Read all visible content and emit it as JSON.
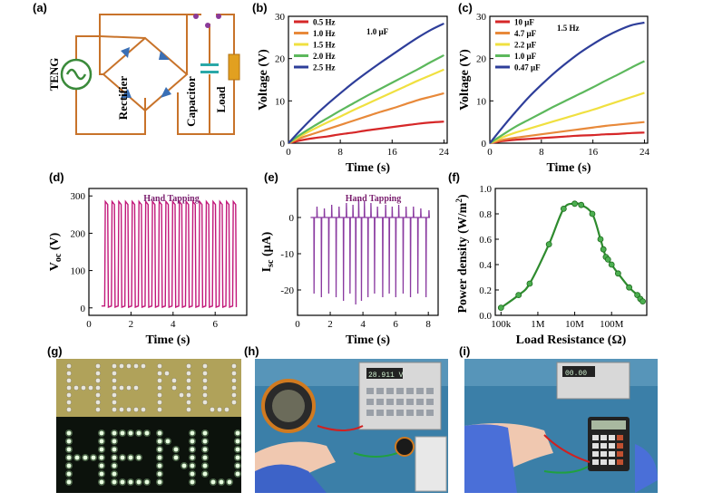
{
  "panels": {
    "a": "(a)",
    "b": "(b)",
    "c": "(c)",
    "d": "(d)",
    "e": "(e)",
    "f": "(f)",
    "g": "(g)",
    "h": "(h)",
    "i": "(i)"
  },
  "circuit": {
    "teng_label": "TENG",
    "rectifier_label": "Rectifier",
    "capacitor_label": "Capacitor",
    "load_label": "Load",
    "colors": {
      "wire": "#c8732a",
      "diode": "#3a6fb5",
      "source": "#3a8a3a",
      "capacitor": "#2aa8a8",
      "load": "#e2a020",
      "switch": "#8a3a9a"
    }
  },
  "photos": {
    "g_text": "HENU",
    "h_meter_reading": "28.911 V",
    "i_meter_reading": "00.00"
  },
  "chart_data": [
    {
      "panel": "b",
      "type": "line",
      "xlabel": "Time (s)",
      "ylabel": "Voltage (V)",
      "xlim": [
        0,
        24.5
      ],
      "ylim": [
        0,
        30
      ],
      "xticks": [
        0,
        8,
        16,
        24
      ],
      "yticks": [
        0,
        10,
        20,
        30
      ],
      "annotation": "1.0 μF",
      "legend_position": "top-left",
      "series": [
        {
          "name": "0.5 Hz",
          "color": "#d62728",
          "x": [
            0,
            2,
            4,
            6,
            8,
            10,
            12,
            14,
            16,
            18,
            20,
            22,
            24
          ],
          "y": [
            0,
            0.7,
            1.2,
            1.6,
            2.1,
            2.5,
            3.0,
            3.4,
            3.8,
            4.2,
            4.6,
            4.9,
            5.1
          ]
        },
        {
          "name": "1.0 Hz",
          "color": "#e8893a",
          "x": [
            0,
            2,
            4,
            6,
            8,
            10,
            12,
            14,
            16,
            18,
            20,
            22,
            24
          ],
          "y": [
            0,
            1.3,
            2.3,
            3.3,
            4.3,
            5.3,
            6.3,
            7.3,
            8.2,
            9.2,
            10.2,
            11.0,
            11.8
          ]
        },
        {
          "name": "1.5 Hz",
          "color": "#f0e040",
          "x": [
            0,
            2,
            4,
            6,
            8,
            10,
            12,
            14,
            16,
            18,
            20,
            22,
            24
          ],
          "y": [
            0,
            1.8,
            3.4,
            4.9,
            6.3,
            7.8,
            9.2,
            10.6,
            12.0,
            13.4,
            14.8,
            16.1,
            17.4
          ]
        },
        {
          "name": "2.0 Hz",
          "color": "#5cb85c",
          "x": [
            0,
            2,
            4,
            6,
            8,
            10,
            12,
            14,
            16,
            18,
            20,
            22,
            24
          ],
          "y": [
            0,
            2.2,
            4.1,
            5.9,
            7.7,
            9.4,
            11.1,
            12.7,
            14.3,
            15.9,
            17.5,
            19.2,
            20.8
          ]
        },
        {
          "name": "2.5 Hz",
          "color": "#2e3e9a",
          "x": [
            0,
            2,
            4,
            6,
            8,
            10,
            12,
            14,
            16,
            18,
            20,
            22,
            24
          ],
          "y": [
            0,
            3.3,
            6.4,
            9.2,
            11.8,
            14.3,
            16.6,
            18.8,
            20.9,
            23.0,
            25.0,
            26.8,
            28.3
          ]
        }
      ]
    },
    {
      "panel": "c",
      "type": "line",
      "xlabel": "Time (s)",
      "ylabel": "Voltage (V)",
      "xlim": [
        0,
        24.5
      ],
      "ylim": [
        0,
        30
      ],
      "xticks": [
        0,
        8,
        16,
        24
      ],
      "yticks": [
        0,
        10,
        20,
        30
      ],
      "annotation": "1.5 Hz",
      "legend_position": "top-left",
      "series": [
        {
          "name": "10 μF",
          "color": "#d62728",
          "x": [
            0,
            2,
            4,
            6,
            8,
            10,
            12,
            14,
            16,
            18,
            20,
            22,
            24
          ],
          "y": [
            0,
            0.5,
            0.8,
            1.0,
            1.2,
            1.4,
            1.6,
            1.8,
            1.9,
            2.1,
            2.2,
            2.4,
            2.5
          ]
        },
        {
          "name": "4.7 μF",
          "color": "#e8893a",
          "x": [
            0,
            2,
            4,
            6,
            8,
            10,
            12,
            14,
            16,
            18,
            20,
            22,
            24
          ],
          "y": [
            0,
            0.8,
            1.3,
            1.7,
            2.1,
            2.5,
            2.9,
            3.3,
            3.7,
            4.1,
            4.4,
            4.7,
            5.0
          ]
        },
        {
          "name": "2.2 μF",
          "color": "#f0e040",
          "x": [
            0,
            2,
            4,
            6,
            8,
            10,
            12,
            14,
            16,
            18,
            20,
            22,
            24
          ],
          "y": [
            0,
            1.4,
            2.5,
            3.4,
            4.3,
            5.2,
            6.1,
            7.0,
            7.9,
            8.9,
            9.9,
            10.9,
            11.9
          ]
        },
        {
          "name": "1.0 μF",
          "color": "#5cb85c",
          "x": [
            0,
            2,
            4,
            6,
            8,
            10,
            12,
            14,
            16,
            18,
            20,
            22,
            24
          ],
          "y": [
            0,
            2.0,
            3.9,
            5.5,
            7.1,
            8.7,
            10.2,
            11.7,
            13.2,
            14.8,
            16.3,
            17.9,
            19.4
          ]
        },
        {
          "name": "0.47 μF",
          "color": "#2e3e9a",
          "x": [
            0,
            2,
            4,
            6,
            8,
            10,
            12,
            14,
            16,
            18,
            20,
            22,
            24
          ],
          "y": [
            0,
            3.8,
            7.4,
            10.8,
            13.8,
            16.6,
            19.1,
            21.4,
            23.4,
            25.2,
            26.7,
            27.9,
            28.5
          ]
        }
      ]
    },
    {
      "panel": "d",
      "type": "line",
      "xlabel": "Time (s)",
      "ylabel": "V",
      "ylabel_sub": "oc",
      "ylabel_unit": " (V)",
      "annotation": "Hand Tapping",
      "xlim": [
        0,
        7.5
      ],
      "ylim": [
        -20,
        320
      ],
      "xticks": [
        0,
        2,
        4,
        6
      ],
      "yticks": [
        0,
        100,
        200,
        300
      ],
      "color": "#c2187a",
      "pulse_start": 0.75,
      "pulse_period": 0.32,
      "pulse_count": 20,
      "high": 285,
      "low": 5
    },
    {
      "panel": "e",
      "type": "line",
      "xlabel": "Time (s)",
      "ylabel": "I",
      "ylabel_sub": "sc",
      "ylabel_unit": " (μA)",
      "annotation": "Hand Tapping",
      "xlim": [
        0,
        8.6
      ],
      "ylim": [
        -27,
        8
      ],
      "xticks": [
        0,
        2,
        4,
        6,
        8
      ],
      "yticks": [
        -20,
        -10,
        0
      ],
      "color": "#8a3aa0",
      "spike_times": [
        1.0,
        1.45,
        1.9,
        2.35,
        2.8,
        3.2,
        3.55,
        3.9,
        4.3,
        4.7,
        5.2,
        5.6,
        6.0,
        6.45,
        6.9,
        7.35,
        7.85
      ],
      "neg_peaks": [
        -21,
        -22,
        -21,
        -22,
        -23,
        -21,
        -24,
        -23,
        -22,
        -21,
        -22,
        -21,
        -22,
        -21,
        -22,
        -21,
        -22
      ],
      "pos_peaks": [
        3,
        2.5,
        3.5,
        3,
        4,
        3.5,
        5,
        4.5,
        4,
        3,
        3.5,
        3,
        3.5,
        3,
        3,
        2.5,
        2
      ]
    },
    {
      "panel": "f",
      "type": "line",
      "xlabel": "Load Resistance (Ω)",
      "ylabel": "Power density (W/m",
      "ylabel_sup": "2",
      "ylabel_end": ")",
      "xscale": "log",
      "xlim": [
        70000,
        900000000
      ],
      "ylim": [
        0,
        1.0
      ],
      "xticks": [
        100000,
        1000000,
        10000000,
        100000000
      ],
      "xticklabels": [
        "100k",
        "1M",
        "10M",
        "100M"
      ],
      "yticks": [
        0.0,
        0.2,
        0.4,
        0.6,
        0.8,
        1.0
      ],
      "color": "#2e8b2e",
      "x": [
        100000,
        300000,
        600000,
        2000000,
        5000000,
        10000000,
        15000000,
        30000000,
        50000000,
        60000000,
        70000000,
        80000000,
        100000000,
        150000000,
        300000000,
        500000000,
        600000000,
        700000000
      ],
      "y": [
        0.06,
        0.16,
        0.25,
        0.56,
        0.84,
        0.88,
        0.87,
        0.8,
        0.6,
        0.52,
        0.46,
        0.44,
        0.4,
        0.33,
        0.22,
        0.16,
        0.13,
        0.11
      ]
    }
  ]
}
